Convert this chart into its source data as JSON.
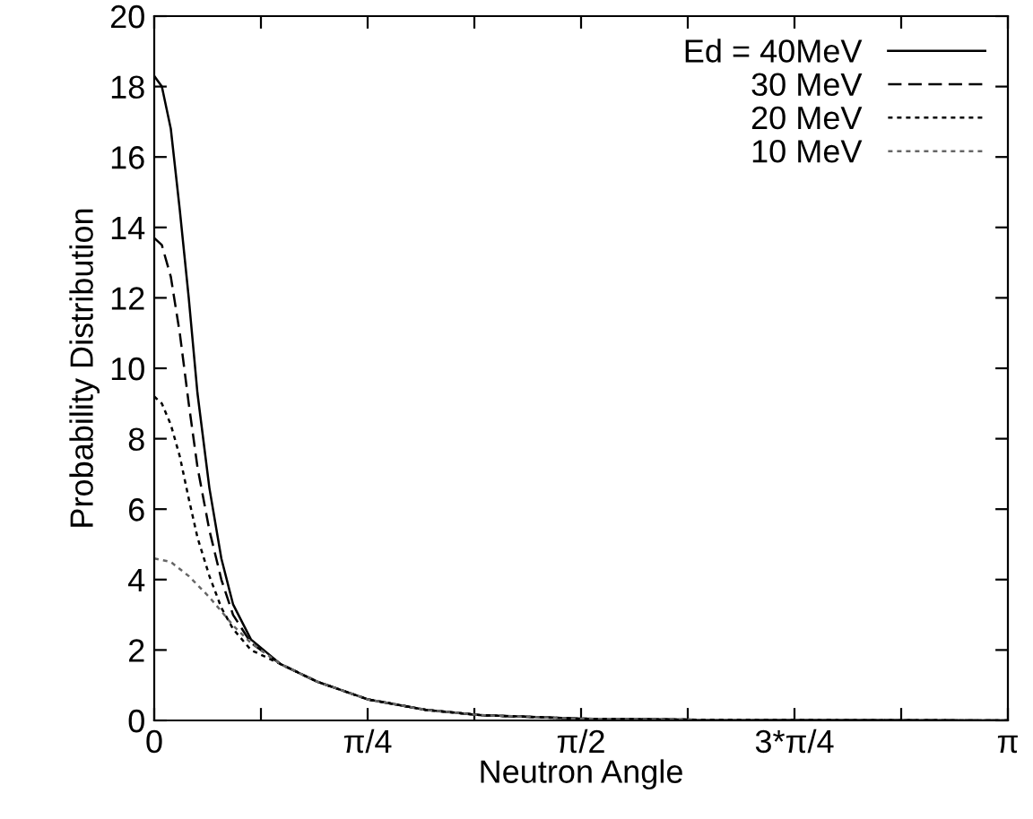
{
  "chart_data": {
    "type": "line",
    "xlabel": "Neutron Angle",
    "ylabel": "Probability Distribution",
    "xlim": [
      0,
      3.1416
    ],
    "ylim": [
      0,
      20
    ],
    "xticks": [
      {
        "value": 0,
        "label": "0"
      },
      {
        "value": 0.3927,
        "label": null
      },
      {
        "value": 0.7854,
        "label": "π/4"
      },
      {
        "value": 1.1781,
        "label": null
      },
      {
        "value": 1.5708,
        "label": "π/2"
      },
      {
        "value": 1.9635,
        "label": null
      },
      {
        "value": 2.3562,
        "label": "3*π/4"
      },
      {
        "value": 2.7489,
        "label": null
      },
      {
        "value": 3.1416,
        "label": "π"
      }
    ],
    "yticks": [
      0,
      2,
      4,
      6,
      8,
      10,
      12,
      14,
      16,
      18,
      20
    ],
    "grid": false,
    "legend": "top right",
    "marker": "none",
    "series": [
      {
        "name": "Ed = 40MeV",
        "color": "#000000",
        "line_style": "solid",
        "x": [
          0,
          0.028,
          0.061,
          0.094,
          0.127,
          0.159,
          0.203,
          0.247,
          0.29,
          0.356,
          0.465,
          0.6,
          0.785,
          1.0,
          1.2,
          1.57,
          2.0,
          2.5,
          3.14
        ],
        "values": [
          18.3,
          18.0,
          16.8,
          14.5,
          12.0,
          9.3,
          6.6,
          4.6,
          3.3,
          2.3,
          1.6,
          1.1,
          0.6,
          0.3,
          0.15,
          0.05,
          0.02,
          0.01,
          0.0
        ]
      },
      {
        "name": "30 MeV",
        "color": "#000000",
        "line_style": "dashed",
        "x": [
          0,
          0.028,
          0.061,
          0.094,
          0.127,
          0.159,
          0.203,
          0.247,
          0.29,
          0.356,
          0.465,
          0.6,
          0.785,
          1.0,
          1.2,
          1.57,
          2.0,
          2.5,
          3.14
        ],
        "values": [
          13.7,
          13.5,
          12.6,
          11.0,
          9.0,
          7.2,
          5.4,
          4.0,
          3.0,
          2.2,
          1.6,
          1.1,
          0.6,
          0.3,
          0.15,
          0.05,
          0.02,
          0.01,
          0.0
        ]
      },
      {
        "name": "20 MeV",
        "color": "#000000",
        "line_style": "dotted",
        "x": [
          0,
          0.028,
          0.061,
          0.094,
          0.127,
          0.159,
          0.203,
          0.247,
          0.29,
          0.356,
          0.465,
          0.6,
          0.785,
          1.0,
          1.2,
          1.57,
          2.0,
          2.5,
          3.14
        ],
        "values": [
          9.2,
          9.0,
          8.4,
          7.5,
          6.3,
          5.2,
          4.1,
          3.2,
          2.6,
          2.0,
          1.6,
          1.1,
          0.6,
          0.3,
          0.15,
          0.05,
          0.02,
          0.01,
          0.0
        ]
      },
      {
        "name": "10 MeV",
        "color": "#666666",
        "line_style": "dotted",
        "x": [
          0,
          0.061,
          0.127,
          0.203,
          0.247,
          0.29,
          0.356,
          0.465,
          0.6,
          0.785,
          1.0,
          1.2,
          1.57,
          2.0,
          2.5,
          3.14
        ],
        "values": [
          4.6,
          4.5,
          4.1,
          3.5,
          3.1,
          2.7,
          2.2,
          1.6,
          1.1,
          0.6,
          0.3,
          0.15,
          0.05,
          0.02,
          0.01,
          0.0
        ]
      }
    ]
  }
}
